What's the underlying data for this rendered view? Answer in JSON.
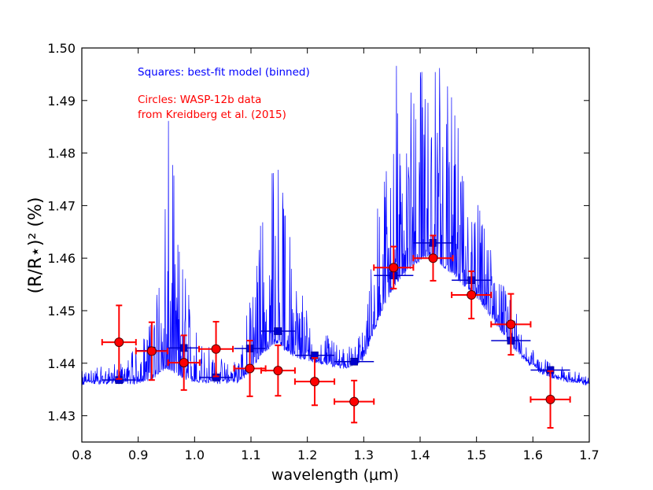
{
  "chart_data": {
    "type": "scatter",
    "title": "",
    "xlabel": "wavelength (μm)",
    "ylabel": "(R/R⋆)²  (%)",
    "xlim": [
      0.8,
      1.7
    ],
    "ylim": [
      1.425,
      1.5
    ],
    "xticks": [
      "0.8",
      "0.9",
      "1.0",
      "1.1",
      "1.2",
      "1.3",
      "1.4",
      "1.5",
      "1.6",
      "1.7"
    ],
    "yticks": [
      "1.43",
      "1.44",
      "1.45",
      "1.46",
      "1.47",
      "1.48",
      "1.49",
      "1.50"
    ],
    "grid": false,
    "annotations": [
      {
        "text": "Squares: best-fit model (binned)",
        "color": "#0000ff"
      },
      {
        "text": "Circles: WASP-12b data",
        "color": "#ff0000"
      },
      {
        "text": "from Kreidberg et al. (2015)",
        "color": "#ff0000"
      }
    ],
    "series": [
      {
        "name": "best-fit model (binned)",
        "marker": "square",
        "color": "#0000cc",
        "x": [
          0.866,
          0.924,
          0.981,
          1.038,
          1.098,
          1.148,
          1.213,
          1.283,
          1.353,
          1.423,
          1.491,
          1.561,
          1.631
        ],
        "y": [
          1.4368,
          1.4424,
          1.4429,
          1.4373,
          1.4428,
          1.4461,
          1.4415,
          1.4403,
          1.4567,
          1.4629,
          1.4558,
          1.4443,
          1.4387
        ],
        "x_err": [
          0.03,
          0.028,
          0.028,
          0.03,
          0.028,
          0.03,
          0.035,
          0.035,
          0.035,
          0.035,
          0.035,
          0.035,
          0.035
        ]
      },
      {
        "name": "WASP-12b data",
        "marker": "circle",
        "color": "#ff0000",
        "x": [
          0.866,
          0.924,
          0.981,
          1.038,
          1.098,
          1.148,
          1.213,
          1.283,
          1.353,
          1.423,
          1.491,
          1.561,
          1.631
        ],
        "y": [
          1.444,
          1.4423,
          1.4401,
          1.4427,
          1.439,
          1.4386,
          1.4365,
          1.4327,
          1.4582,
          1.46,
          1.453,
          1.4474,
          1.4331
        ],
        "y_err": [
          0.007,
          0.0055,
          0.0052,
          0.0052,
          0.0053,
          0.0048,
          0.0045,
          0.004,
          0.004,
          0.0043,
          0.0045,
          0.0058,
          0.0054
        ],
        "x_err": [
          0.03,
          0.028,
          0.028,
          0.03,
          0.028,
          0.03,
          0.035,
          0.035,
          0.035,
          0.035,
          0.035,
          0.035,
          0.035
        ]
      }
    ],
    "model_spectrum": {
      "name": "best-fit model (high resolution)",
      "color": "#0000ff",
      "x": [
        0.8,
        0.82,
        0.84,
        0.86,
        0.88,
        0.9,
        0.92,
        0.94,
        0.95,
        0.96,
        0.98,
        1.0,
        1.02,
        1.04,
        1.06,
        1.08,
        1.1,
        1.12,
        1.14,
        1.15,
        1.16,
        1.18,
        1.2,
        1.22,
        1.24,
        1.26,
        1.28,
        1.3,
        1.32,
        1.34,
        1.36,
        1.38,
        1.4,
        1.42,
        1.44,
        1.46,
        1.48,
        1.5,
        1.52,
        1.54,
        1.56,
        1.58,
        1.6,
        1.62,
        1.64,
        1.66,
        1.68,
        1.7
      ],
      "baseline": [
        1.4364,
        1.4364,
        1.4365,
        1.4366,
        1.4365,
        1.4366,
        1.437,
        1.4385,
        1.4395,
        1.439,
        1.4375,
        1.4368,
        1.4367,
        1.4366,
        1.4366,
        1.4368,
        1.439,
        1.442,
        1.444,
        1.4445,
        1.443,
        1.4415,
        1.441,
        1.4405,
        1.44,
        1.4395,
        1.4398,
        1.441,
        1.447,
        1.452,
        1.456,
        1.458,
        1.46,
        1.461,
        1.459,
        1.457,
        1.455,
        1.453,
        1.45,
        1.447,
        1.444,
        1.4415,
        1.4395,
        1.4382,
        1.4375,
        1.437,
        1.4365,
        1.4363
      ],
      "envelope": [
        1.4385,
        1.439,
        1.4395,
        1.4405,
        1.441,
        1.444,
        1.448,
        1.47,
        1.49,
        1.48,
        1.46,
        1.448,
        1.444,
        1.442,
        1.44,
        1.442,
        1.455,
        1.472,
        1.485,
        1.491,
        1.47,
        1.458,
        1.452,
        1.447,
        1.445,
        1.443,
        1.444,
        1.447,
        1.465,
        1.485,
        1.5,
        1.495,
        1.5,
        1.5,
        1.499,
        1.49,
        1.48,
        1.472,
        1.465,
        1.458,
        1.452,
        1.448,
        1.443,
        1.441,
        1.44,
        1.439,
        1.4385,
        1.4375
      ]
    }
  }
}
